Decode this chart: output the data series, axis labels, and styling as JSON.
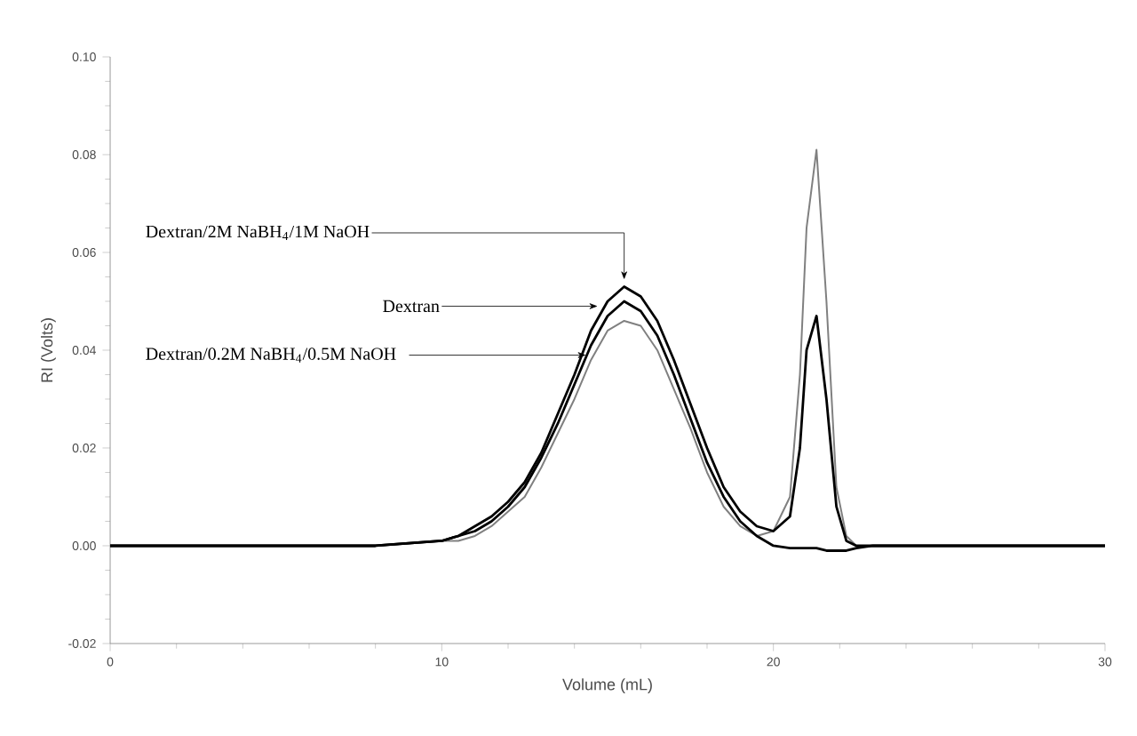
{
  "chart_data": {
    "type": "line",
    "xlabel": "Volume (mL)",
    "ylabel": "RI (Volts)",
    "xlim": [
      0,
      30
    ],
    "ylim": [
      -0.02,
      0.1
    ],
    "xticks": [
      0,
      10,
      20,
      30
    ],
    "yticks": [
      {
        "value": -0.02,
        "label": "-0.02"
      },
      {
        "value": 0,
        "label": "0.00"
      },
      {
        "value": 0.02,
        "label": "0.02"
      },
      {
        "value": 0.04,
        "label": "0.04"
      },
      {
        "value": 0.06,
        "label": "0.06"
      },
      {
        "value": 0.08,
        "label": "0.08"
      },
      {
        "value": 0.1,
        "label": "0.10"
      }
    ],
    "grid": false,
    "marker": "none",
    "line_style": "solid",
    "x": [
      0,
      2,
      4,
      6,
      8,
      10,
      10.5,
      11,
      11.5,
      12,
      12.5,
      13,
      13.5,
      14,
      14.5,
      15,
      15.5,
      16,
      16.5,
      17,
      17.5,
      18,
      18.5,
      19,
      19.5,
      20,
      20.5,
      20.8,
      21,
      21.3,
      21.6,
      21.9,
      22.2,
      22.5,
      23,
      24,
      26,
      28,
      30
    ],
    "series": [
      {
        "color": "#000000",
        "values": [
          0,
          0,
          0,
          0,
          0,
          0.001,
          0.002,
          0.003,
          0.005,
          0.008,
          0.012,
          0.018,
          0.025,
          0.033,
          0.041,
          0.047,
          0.05,
          0.048,
          0.043,
          0.035,
          0.026,
          0.017,
          0.01,
          0.005,
          0.002,
          0.0,
          -0.0005,
          -0.0005,
          -0.0005,
          -0.0005,
          -0.001,
          -0.001,
          -0.001,
          -0.0005,
          0,
          0,
          0,
          0,
          0
        ]
      },
      {
        "color": "#000000",
        "values": [
          0,
          0,
          0,
          0,
          0,
          0.001,
          0.002,
          0.004,
          0.006,
          0.009,
          0.013,
          0.019,
          0.027,
          0.035,
          0.044,
          0.05,
          0.053,
          0.051,
          0.046,
          0.038,
          0.029,
          0.02,
          0.012,
          0.007,
          0.004,
          0.003,
          0.006,
          0.02,
          0.04,
          0.047,
          0.03,
          0.008,
          0.001,
          0,
          0,
          0,
          0,
          0,
          0
        ]
      },
      {
        "color": "#808080",
        "values": [
          0,
          0,
          0,
          0,
          0,
          0.001,
          0.001,
          0.002,
          0.004,
          0.007,
          0.01,
          0.016,
          0.023,
          0.03,
          0.038,
          0.044,
          0.046,
          0.045,
          0.04,
          0.032,
          0.024,
          0.015,
          0.008,
          0.004,
          0.002,
          0.003,
          0.01,
          0.035,
          0.065,
          0.081,
          0.05,
          0.012,
          0.002,
          0,
          0,
          0,
          0,
          0,
          0
        ]
      }
    ],
    "annotations": [
      {
        "text": "Dextran/2M NaBH$_{4}$/1M NaOH",
        "x": 15.5,
        "y": 0.053
      },
      {
        "text": "Dextran",
        "x": 14.7,
        "y": 0.049
      },
      {
        "text": "Dextran/0.2M NaBH$_{4}$/0.5M NaOH",
        "x": 14.35,
        "y": 0.039
      }
    ]
  }
}
